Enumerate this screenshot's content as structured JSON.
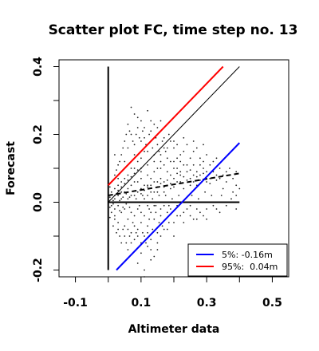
{
  "chart_data": {
    "type": "scatter",
    "title": "Scatter plot FC, time step no. 13",
    "xlabel": "Altimeter data",
    "ylabel": "Forecast",
    "xlim": [
      -0.15,
      0.55
    ],
    "ylim": [
      -0.22,
      0.42
    ],
    "xticks": [
      -0.1,
      0.1,
      0.3,
      0.5
    ],
    "xtick_labels": [
      "-0.1",
      "0.1",
      "0.3",
      "0.5"
    ],
    "xticks_minor": [
      -0.1,
      0.0,
      0.1,
      0.2,
      0.3,
      0.4,
      0.5
    ],
    "yticks": [
      -0.2,
      0.0,
      0.2,
      0.4
    ],
    "ytick_labels": [
      "-0.2",
      "0.0",
      "0.2",
      "0.4"
    ],
    "yticks_minor": [
      -0.2,
      -0.1,
      0.0,
      0.1,
      0.2,
      0.3,
      0.4
    ],
    "grid": false,
    "legend_position": "bottom-right",
    "legend": [
      {
        "label": "5%: -0.16m",
        "color": "#0000ff"
      },
      {
        "label": "95%:  0.04m",
        "color": "#ff0000"
      }
    ],
    "lines": [
      {
        "name": "vertical-axis",
        "color": "#000000",
        "style": "solid",
        "x": [
          0.0,
          0.0
        ],
        "y": [
          -0.2,
          0.4
        ]
      },
      {
        "name": "horizontal-axis",
        "color": "#000000",
        "style": "solid",
        "x": [
          0.0,
          0.4
        ],
        "y": [
          0.0,
          0.0
        ]
      },
      {
        "name": "identity",
        "color": "#000000",
        "style": "thin",
        "x": [
          0.0,
          0.4
        ],
        "y": [
          0.0,
          0.4
        ]
      },
      {
        "name": "regression",
        "color": "#000000",
        "style": "dashed",
        "x": [
          0.0,
          0.4
        ],
        "y": [
          0.02,
          0.085
        ]
      },
      {
        "name": "upper-95",
        "color": "#ff0000",
        "style": "solid",
        "x": [
          0.0,
          0.35
        ],
        "y": [
          0.05,
          0.4
        ]
      },
      {
        "name": "lower-5",
        "color": "#0000ff",
        "style": "solid",
        "x": [
          0.025,
          0.4
        ],
        "y": [
          -0.2,
          0.175
        ]
      }
    ],
    "points": [
      [
        0.01,
        0.0
      ],
      [
        0.02,
        0.01
      ],
      [
        0.03,
        0.02
      ],
      [
        0.01,
        -0.01
      ],
      [
        0.04,
        0.03
      ],
      [
        0.05,
        0.0
      ],
      [
        0.06,
        0.04
      ],
      [
        0.02,
        -0.02
      ],
      [
        0.07,
        0.05
      ],
      [
        0.08,
        0.02
      ],
      [
        0.03,
        0.05
      ],
      [
        0.05,
        0.07
      ],
      [
        0.09,
        0.06
      ],
      [
        0.1,
        0.04
      ],
      [
        0.12,
        0.08
      ],
      [
        0.11,
        0.01
      ],
      [
        0.13,
        0.05
      ],
      [
        0.14,
        0.09
      ],
      [
        0.15,
        0.03
      ],
      [
        0.16,
        0.07
      ],
      [
        0.17,
        0.11
      ],
      [
        0.18,
        0.05
      ],
      [
        0.19,
        0.08
      ],
      [
        0.2,
        0.1
      ],
      [
        0.21,
        0.06
      ],
      [
        0.22,
        0.12
      ],
      [
        0.23,
        0.04
      ],
      [
        0.24,
        0.09
      ],
      [
        0.25,
        0.07
      ],
      [
        0.26,
        0.11
      ],
      [
        0.27,
        0.05
      ],
      [
        0.28,
        0.08
      ],
      [
        0.3,
        0.06
      ],
      [
        0.32,
        0.09
      ],
      [
        0.35,
        0.04
      ],
      [
        0.38,
        0.03
      ],
      [
        0.39,
        0.05
      ],
      [
        0.02,
        0.08
      ],
      [
        0.03,
        0.11
      ],
      [
        0.04,
        0.14
      ],
      [
        0.05,
        0.18
      ],
      [
        0.06,
        0.16
      ],
      [
        0.07,
        0.2
      ],
      [
        0.08,
        0.17
      ],
      [
        0.09,
        0.22
      ],
      [
        0.1,
        0.13
      ],
      [
        0.11,
        0.19
      ],
      [
        0.12,
        0.15
      ],
      [
        0.13,
        0.21
      ],
      [
        0.14,
        0.12
      ],
      [
        0.15,
        0.17
      ],
      [
        0.16,
        0.14
      ],
      [
        0.17,
        0.19
      ],
      [
        0.18,
        0.13
      ],
      [
        0.2,
        0.16
      ],
      [
        0.22,
        0.14
      ],
      [
        0.24,
        0.17
      ],
      [
        0.26,
        0.15
      ],
      [
        0.28,
        0.13
      ],
      [
        0.3,
        0.14
      ],
      [
        0.06,
        0.23
      ],
      [
        0.08,
        0.26
      ],
      [
        0.1,
        0.24
      ],
      [
        0.12,
        0.27
      ],
      [
        0.07,
        0.28
      ],
      [
        0.09,
        0.25
      ],
      [
        0.11,
        0.22
      ],
      [
        0.14,
        0.23
      ],
      [
        0.16,
        0.24
      ],
      [
        0.02,
        -0.04
      ],
      [
        0.03,
        -0.06
      ],
      [
        0.04,
        -0.03
      ],
      [
        0.05,
        -0.07
      ],
      [
        0.06,
        -0.05
      ],
      [
        0.07,
        -0.09
      ],
      [
        0.08,
        -0.04
      ],
      [
        0.09,
        -0.08
      ],
      [
        0.1,
        -0.06
      ],
      [
        0.11,
        -0.1
      ],
      [
        0.12,
        -0.07
      ],
      [
        0.13,
        -0.11
      ],
      [
        0.14,
        -0.05
      ],
      [
        0.15,
        -0.09
      ],
      [
        0.16,
        -0.04
      ],
      [
        0.17,
        -0.08
      ],
      [
        0.18,
        -0.03
      ],
      [
        0.2,
        -0.06
      ],
      [
        0.22,
        -0.04
      ],
      [
        0.24,
        -0.02
      ],
      [
        0.26,
        -0.05
      ],
      [
        0.28,
        -0.03
      ],
      [
        0.3,
        -0.02
      ],
      [
        0.04,
        -0.12
      ],
      [
        0.06,
        -0.14
      ],
      [
        0.08,
        -0.11
      ],
      [
        0.1,
        -0.15
      ],
      [
        0.12,
        -0.13
      ],
      [
        0.14,
        -0.16
      ],
      [
        0.09,
        -0.18
      ],
      [
        0.11,
        -0.2
      ],
      [
        0.13,
        -0.14
      ],
      [
        0.15,
        -0.12
      ],
      [
        0.11,
        -0.22
      ],
      [
        0.01,
        0.03
      ],
      [
        0.02,
        0.04
      ],
      [
        0.03,
        -0.01
      ],
      [
        0.04,
        0.01
      ],
      [
        0.05,
        0.03
      ],
      [
        0.06,
        0.01
      ],
      [
        0.07,
        0.02
      ],
      [
        0.08,
        0.06
      ],
      [
        0.09,
        0.03
      ],
      [
        0.1,
        0.07
      ],
      [
        0.11,
        0.05
      ],
      [
        0.12,
        0.02
      ],
      [
        0.13,
        0.07
      ],
      [
        0.14,
        0.03
      ],
      [
        0.15,
        0.06
      ],
      [
        0.16,
        0.1
      ],
      [
        0.17,
        0.03
      ],
      [
        0.18,
        0.09
      ],
      [
        0.19,
        0.04
      ],
      [
        0.2,
        0.07
      ],
      [
        0.21,
        0.1
      ],
      [
        0.22,
        0.08
      ],
      [
        0.23,
        0.11
      ],
      [
        0.25,
        0.05
      ],
      [
        0.27,
        0.09
      ],
      [
        0.29,
        0.1
      ],
      [
        0.31,
        0.07
      ],
      [
        0.33,
        0.08
      ],
      [
        0.36,
        0.06
      ],
      [
        0.37,
        0.1
      ],
      [
        0.4,
        0.04
      ],
      [
        0.02,
        0.14
      ],
      [
        0.04,
        0.09
      ],
      [
        0.05,
        0.12
      ],
      [
        0.07,
        0.1
      ],
      [
        0.09,
        0.12
      ],
      [
        0.1,
        0.1
      ],
      [
        0.12,
        0.11
      ],
      [
        0.14,
        0.14
      ],
      [
        0.16,
        0.12
      ],
      [
        0.18,
        0.16
      ],
      [
        0.19,
        0.12
      ],
      [
        0.21,
        0.13
      ],
      [
        0.23,
        0.15
      ],
      [
        0.25,
        0.13
      ],
      [
        0.27,
        0.16
      ],
      [
        0.29,
        0.12
      ],
      [
        0.32,
        0.12
      ],
      [
        0.34,
        0.1
      ],
      [
        0.01,
        -0.03
      ],
      [
        0.02,
        -0.05
      ],
      [
        0.03,
        -0.08
      ],
      [
        0.05,
        -0.02
      ],
      [
        0.06,
        -0.08
      ],
      [
        0.07,
        -0.03
      ],
      [
        0.08,
        -0.07
      ],
      [
        0.09,
        -0.02
      ],
      [
        0.1,
        -0.03
      ],
      [
        0.11,
        -0.04
      ],
      [
        0.12,
        -0.01
      ],
      [
        0.13,
        -0.03
      ],
      [
        0.14,
        -0.01
      ],
      [
        0.16,
        -0.02
      ],
      [
        0.17,
        -0.01
      ],
      [
        0.19,
        -0.02
      ],
      [
        0.21,
        -0.01
      ],
      [
        0.23,
        -0.03
      ],
      [
        0.25,
        -0.01
      ],
      [
        0.27,
        -0.02
      ],
      [
        0.29,
        -0.04
      ],
      [
        0.32,
        -0.01
      ],
      [
        0.34,
        -0.03
      ],
      [
        0.05,
        -0.1
      ],
      [
        0.07,
        -0.12
      ],
      [
        0.09,
        -0.1
      ],
      [
        0.1,
        -0.12
      ],
      [
        0.12,
        -0.09
      ],
      [
        0.13,
        -0.17
      ],
      [
        0.15,
        -0.14
      ],
      [
        0.16,
        -0.1
      ],
      [
        0.18,
        -0.08
      ],
      [
        0.2,
        -0.1
      ],
      [
        0.03,
        0.07
      ],
      [
        0.04,
        0.06
      ],
      [
        0.06,
        0.08
      ],
      [
        0.08,
        0.1
      ],
      [
        0.1,
        0.09
      ],
      [
        0.12,
        0.05
      ],
      [
        0.15,
        0.1
      ],
      [
        0.17,
        0.06
      ],
      [
        0.2,
        0.12
      ],
      [
        0.22,
        0.09
      ],
      [
        0.24,
        0.11
      ],
      [
        0.26,
        0.08
      ],
      [
        0.28,
        0.11
      ],
      [
        0.3,
        0.09
      ],
      [
        0.35,
        0.08
      ],
      [
        0.38,
        0.07
      ],
      [
        0.08,
        0.14
      ],
      [
        0.1,
        0.18
      ],
      [
        0.11,
        0.15
      ],
      [
        0.13,
        0.18
      ],
      [
        0.15,
        0.2
      ],
      [
        0.17,
        0.16
      ],
      [
        0.19,
        0.18
      ],
      [
        0.21,
        0.17
      ],
      [
        0.13,
        0.24
      ],
      [
        0.15,
        0.22
      ],
      [
        0.005,
        0.015
      ],
      [
        0.005,
        -0.015
      ],
      [
        0.015,
        0.005
      ],
      [
        0.015,
        -0.005
      ],
      [
        0.025,
        0.0
      ],
      [
        0.025,
        0.025
      ],
      [
        0.035,
        0.005
      ],
      [
        0.035,
        -0.025
      ],
      [
        0.045,
        0.015
      ],
      [
        0.045,
        -0.015
      ],
      [
        0.055,
        0.025
      ],
      [
        0.055,
        -0.005
      ],
      [
        0.065,
        0.015
      ],
      [
        0.065,
        -0.015
      ],
      [
        0.075,
        0.0
      ],
      [
        0.085,
        0.01
      ],
      [
        0.095,
        -0.01
      ],
      [
        0.105,
        0.02
      ],
      [
        0.115,
        0.0
      ],
      [
        0.125,
        -0.02
      ],
      [
        0.135,
        0.01
      ],
      [
        0.145,
        -0.01
      ],
      [
        0.155,
        0.02
      ],
      [
        0.165,
        0.0
      ],
      [
        0.175,
        0.02
      ],
      [
        0.185,
        -0.01
      ],
      [
        0.195,
        0.01
      ],
      [
        0.215,
        0.02
      ],
      [
        0.235,
        0.0
      ],
      [
        0.255,
        0.02
      ],
      [
        0.275,
        0.01
      ],
      [
        0.295,
        0.03
      ],
      [
        0.315,
        0.02
      ],
      [
        0.345,
        0.02
      ],
      [
        0.375,
        0.01
      ],
      [
        0.39,
        0.02
      ],
      [
        0.005,
        0.045
      ],
      [
        0.015,
        0.065
      ],
      [
        0.025,
        0.095
      ],
      [
        0.035,
        0.12
      ],
      [
        0.045,
        0.16
      ],
      [
        0.055,
        0.2
      ],
      [
        0.065,
        0.21
      ],
      [
        0.075,
        0.18
      ],
      [
        0.085,
        0.2
      ],
      [
        0.095,
        0.19
      ],
      [
        0.105,
        0.21
      ],
      [
        0.115,
        0.17
      ],
      [
        0.125,
        0.2
      ],
      [
        0.135,
        0.16
      ],
      [
        0.145,
        0.19
      ],
      [
        0.155,
        0.15
      ],
      [
        0.165,
        0.18
      ],
      [
        0.175,
        0.15
      ],
      [
        0.185,
        0.2
      ],
      [
        0.2,
        0.18
      ],
      [
        0.23,
        0.19
      ],
      [
        0.26,
        0.18
      ],
      [
        0.29,
        0.17
      ],
      [
        0.31,
        0.11
      ],
      [
        0.33,
        0.13
      ],
      [
        0.36,
        0.09
      ],
      [
        0.005,
        -0.045
      ],
      [
        0.015,
        -0.07
      ],
      [
        0.025,
        -0.09
      ],
      [
        0.035,
        -0.1
      ],
      [
        0.045,
        -0.08
      ],
      [
        0.055,
        -0.12
      ],
      [
        0.065,
        -0.1
      ],
      [
        0.075,
        -0.06
      ],
      [
        0.085,
        -0.09
      ],
      [
        0.095,
        -0.13
      ],
      [
        0.105,
        -0.09
      ],
      [
        0.115,
        -0.12
      ],
      [
        0.125,
        -0.05
      ],
      [
        0.135,
        -0.08
      ],
      [
        0.145,
        -0.03
      ],
      [
        0.155,
        -0.06
      ],
      [
        0.165,
        -0.07
      ],
      [
        0.175,
        -0.05
      ],
      [
        0.185,
        -0.06
      ],
      [
        0.21,
        -0.04
      ],
      [
        0.23,
        -0.06
      ],
      [
        0.25,
        -0.04
      ],
      [
        0.27,
        -0.05
      ],
      [
        0.3,
        -0.05
      ],
      [
        0.33,
        -0.02
      ],
      [
        0.36,
        -0.01
      ],
      [
        0.39,
        -0.02
      ],
      [
        0.02,
        0.02
      ],
      [
        0.03,
        0.035
      ],
      [
        0.04,
        0.045
      ],
      [
        0.05,
        0.055
      ],
      [
        0.06,
        0.065
      ],
      [
        0.07,
        0.075
      ],
      [
        0.08,
        0.085
      ],
      [
        0.09,
        0.095
      ],
      [
        0.1,
        0.025
      ],
      [
        0.11,
        0.035
      ],
      [
        0.12,
        0.045
      ],
      [
        0.13,
        0.03
      ],
      [
        0.14,
        0.06
      ],
      [
        0.15,
        0.045
      ],
      [
        0.16,
        0.055
      ],
      [
        0.17,
        0.045
      ],
      [
        0.18,
        0.065
      ],
      [
        0.19,
        0.055
      ],
      [
        0.2,
        0.045
      ],
      [
        0.21,
        0.085
      ],
      [
        0.22,
        0.06
      ],
      [
        0.23,
        0.075
      ],
      [
        0.24,
        0.065
      ],
      [
        0.25,
        0.095
      ],
      [
        0.26,
        0.06
      ],
      [
        0.27,
        0.075
      ],
      [
        0.28,
        0.065
      ],
      [
        0.29,
        0.085
      ],
      [
        0.3,
        0.075
      ],
      [
        0.31,
        0.055
      ],
      [
        0.33,
        0.065
      ],
      [
        0.34,
        0.07
      ],
      [
        0.37,
        0.08
      ],
      [
        0.39,
        0.09
      ]
    ]
  }
}
